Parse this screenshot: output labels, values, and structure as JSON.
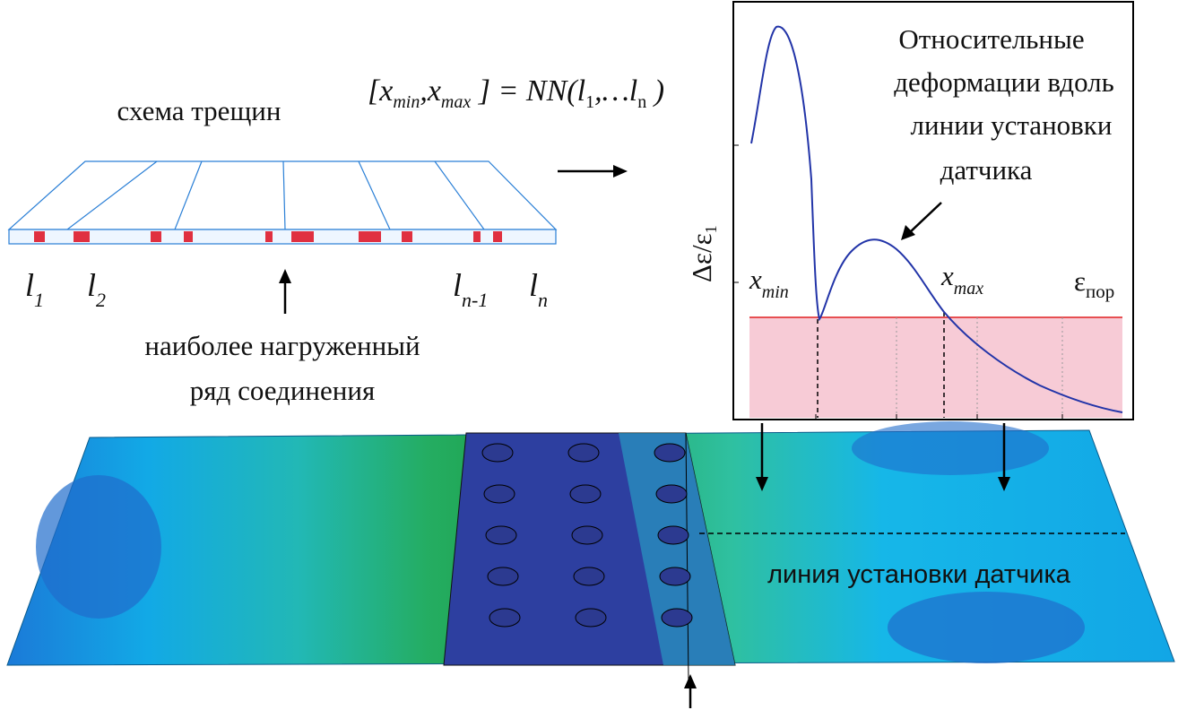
{
  "scheme": {
    "title": "схема трещин",
    "labels": [
      {
        "main": "l",
        "sub": "1"
      },
      {
        "main": "l",
        "sub": "2"
      },
      {
        "main": "l",
        "sub": "n-1"
      },
      {
        "main": "l",
        "sub": "n"
      }
    ],
    "caption": [
      "наиболее нагруженный",
      "ряд соединения"
    ]
  },
  "formula": [
    "[x",
    "min",
    ",x",
    "max",
    " ] = NN(",
    "l",
    "1",
    ",…",
    "l",
    "n",
    " )"
  ],
  "plot": {
    "title": [
      "Относительные",
      "деформации вдоль",
      "линии установки",
      "датчика"
    ],
    "y_label": {
      "main": "Δε/ε",
      "sub": "1"
    },
    "x_min": {
      "main": "x",
      "sub": "min"
    },
    "x_max": {
      "main": "x",
      "sub": "max"
    },
    "threshold": {
      "main": "ε",
      "sub": "пор"
    }
  },
  "model": {
    "sensor_line": "линия  установки датчика"
  }
}
